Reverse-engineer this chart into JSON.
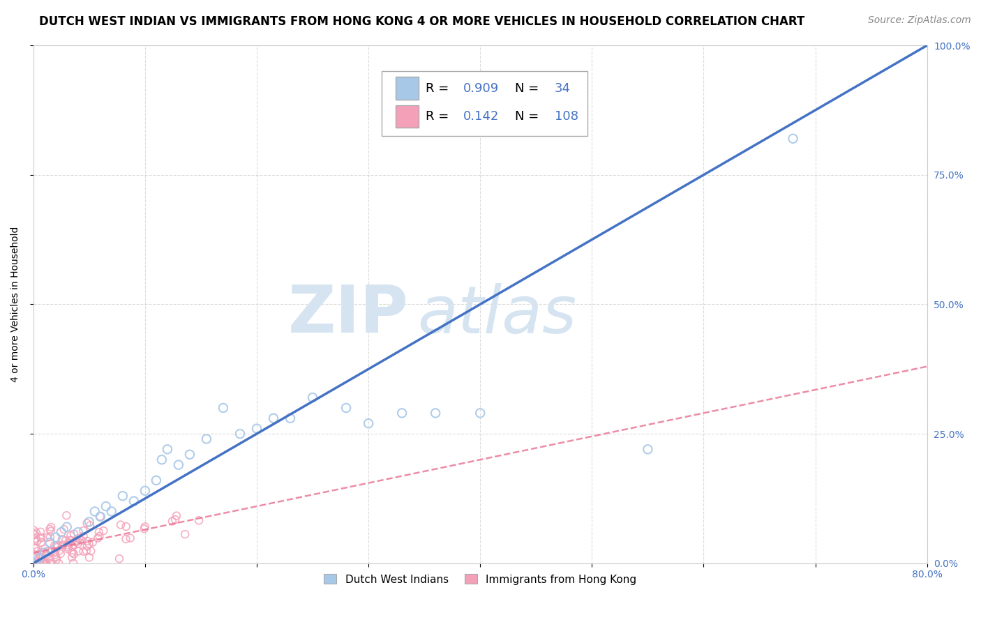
{
  "title": "DUTCH WEST INDIAN VS IMMIGRANTS FROM HONG KONG 4 OR MORE VEHICLES IN HOUSEHOLD CORRELATION CHART",
  "source": "Source: ZipAtlas.com",
  "ylabel": "4 or more Vehicles in Household",
  "xmin": 0.0,
  "xmax": 0.8,
  "ymin": 0.0,
  "ymax": 1.0,
  "xtick_positions": [
    0.0,
    0.1,
    0.2,
    0.3,
    0.4,
    0.5,
    0.6,
    0.7,
    0.8
  ],
  "xtick_labels": [
    "0.0%",
    "",
    "",
    "",
    "",
    "",
    "",
    "",
    "80.0%"
  ],
  "ytick_positions": [
    0.0,
    0.25,
    0.5,
    0.75,
    1.0
  ],
  "ytick_labels": [
    "0.0%",
    "25.0%",
    "50.0%",
    "75.0%",
    "100.0%"
  ],
  "blue_R": 0.909,
  "blue_N": 34,
  "pink_R": 0.142,
  "pink_N": 108,
  "blue_scatter_color": "#a8c8e8",
  "blue_line_color": "#4472c4",
  "pink_scatter_color": "#f4a0b8",
  "pink_line_color": "#e87090",
  "tick_color": "#4472c4",
  "watermark_color": "#d5e4f0",
  "background_color": "#ffffff",
  "legend_label_blue": "Dutch West Indians",
  "legend_label_pink": "Immigrants from Hong Kong",
  "blue_points_x": [
    0.005,
    0.01,
    0.015,
    0.02,
    0.025,
    0.03,
    0.04,
    0.05,
    0.055,
    0.06,
    0.065,
    0.07,
    0.08,
    0.09,
    0.1,
    0.11,
    0.115,
    0.12,
    0.13,
    0.14,
    0.155,
    0.17,
    0.185,
    0.2,
    0.215,
    0.23,
    0.25,
    0.28,
    0.3,
    0.33,
    0.36,
    0.4,
    0.55,
    0.68
  ],
  "blue_points_y": [
    0.01,
    0.02,
    0.04,
    0.05,
    0.06,
    0.07,
    0.06,
    0.08,
    0.1,
    0.09,
    0.11,
    0.1,
    0.13,
    0.12,
    0.14,
    0.16,
    0.2,
    0.22,
    0.19,
    0.21,
    0.24,
    0.3,
    0.25,
    0.26,
    0.28,
    0.28,
    0.32,
    0.3,
    0.27,
    0.29,
    0.29,
    0.29,
    0.22,
    0.82
  ],
  "blue_line_x": [
    0.0,
    0.8
  ],
  "blue_line_y": [
    0.0,
    1.0
  ],
  "pink_line_x": [
    0.0,
    0.8
  ],
  "pink_line_y": [
    0.02,
    0.38
  ],
  "title_fontsize": 12,
  "axis_label_fontsize": 10,
  "tick_fontsize": 10,
  "legend_fontsize": 12,
  "source_fontsize": 10
}
